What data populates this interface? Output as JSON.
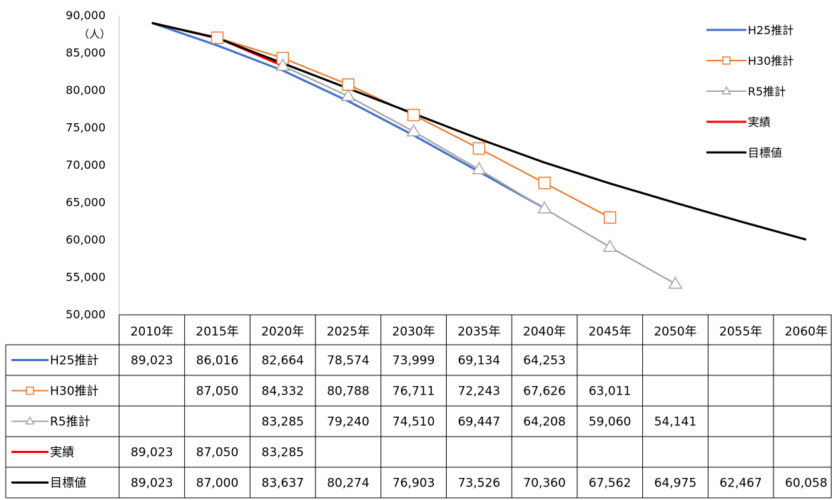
{
  "chart_data": {
    "type": "line",
    "title": "",
    "xlabel": "",
    "ylabel": "（人）",
    "ylim": [
      50000,
      90000
    ],
    "ytick_step": 5000,
    "categories": [
      "2010年",
      "2015年",
      "2020年",
      "2025年",
      "2030年",
      "2035年",
      "2040年",
      "2045年",
      "2050年",
      "2055年",
      "2060年"
    ],
    "legend_position": "right",
    "series": [
      {
        "name": "H25推計",
        "color": "#4472C4",
        "marker": "none",
        "values": [
          89023,
          86016,
          82664,
          78574,
          73999,
          69134,
          64253,
          null,
          null,
          null,
          null
        ]
      },
      {
        "name": "H30推計",
        "color": "#ED7D31",
        "marker": "square",
        "values": [
          null,
          87050,
          84332,
          80788,
          76711,
          72243,
          67626,
          63011,
          null,
          null,
          null
        ]
      },
      {
        "name": "R5推計",
        "color": "#A5A5A5",
        "marker": "triangle",
        "values": [
          null,
          null,
          83285,
          79240,
          74510,
          69447,
          64208,
          59060,
          54141,
          null,
          null
        ]
      },
      {
        "name": "実績",
        "color": "#FF0000",
        "marker": "none",
        "values": [
          89023,
          87050,
          83285,
          null,
          null,
          null,
          null,
          null,
          null,
          null,
          null
        ]
      },
      {
        "name": "目標値",
        "color": "#000000",
        "marker": "none",
        "values": [
          89023,
          87000,
          83637,
          80274,
          76903,
          73526,
          70360,
          67562,
          64975,
          62467,
          60058
        ]
      }
    ]
  }
}
